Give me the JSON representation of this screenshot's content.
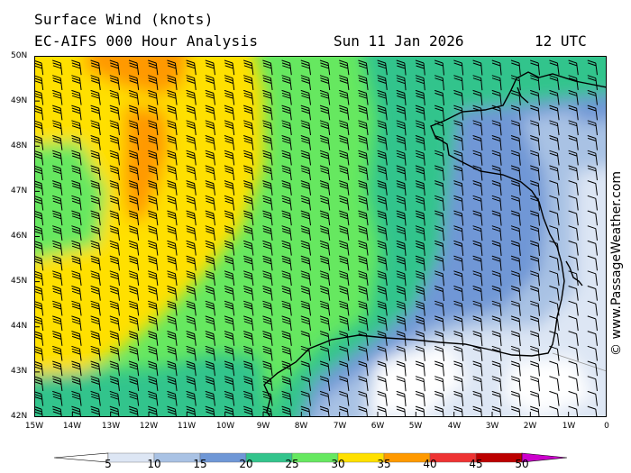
{
  "header": {
    "title": "Surface Wind (knots)",
    "model": "EC-AIFS 000 Hour Analysis",
    "date": "Sun 11 Jan 2026",
    "time": "12 UTC"
  },
  "credit": "© www.PassageWeather.com",
  "lat_labels": [
    "50N",
    "49N",
    "48N",
    "47N",
    "46N",
    "45N",
    "44N",
    "43N",
    "42N"
  ],
  "lon_labels": [
    "15W",
    "14W",
    "13W",
    "12W",
    "11W",
    "10W",
    "9W",
    "8W",
    "7W",
    "6W",
    "5W",
    "4W",
    "3W",
    "2W",
    "1W",
    "0"
  ],
  "legend": {
    "values": [
      "5",
      "10",
      "15",
      "20",
      "25",
      "30",
      "35",
      "40",
      "45",
      "50"
    ],
    "colors": [
      "#ffffff",
      "#dde6f4",
      "#a9c2e4",
      "#6f97d6",
      "#33c48c",
      "#66e860",
      "#ffe000",
      "#ff9900",
      "#ee3333",
      "#bb0000",
      "#cc00cc"
    ]
  }
}
